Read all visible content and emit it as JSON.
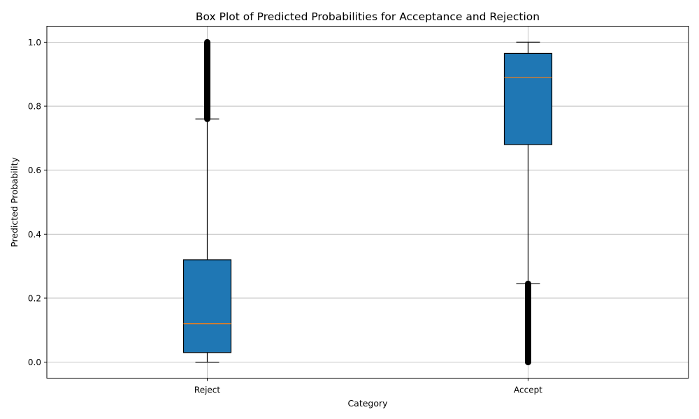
{
  "chart_data": {
    "type": "box",
    "title": "Box Plot of Predicted Probabilities for Acceptance and Rejection",
    "xlabel": "Category",
    "ylabel": "Predicted Probability",
    "ylim": [
      -0.05,
      1.05
    ],
    "yticks": [
      0.0,
      0.2,
      0.4,
      0.6,
      0.8,
      1.0
    ],
    "ytick_labels": [
      "0.0",
      "0.2",
      "0.4",
      "0.6",
      "0.8",
      "1.0"
    ],
    "grid": true,
    "colors": {
      "box_fill": "#1f77b4",
      "median": "#ff7f0e",
      "grid": "#b0b0b0",
      "outlier": "#000000"
    },
    "categories": [
      "Reject",
      "Accept"
    ],
    "boxes": [
      {
        "category": "Reject",
        "whisker_low": 0.0,
        "q1": 0.03,
        "median": 0.12,
        "q3": 0.32,
        "whisker_high": 0.76,
        "outlier_range": [
          0.76,
          1.0
        ]
      },
      {
        "category": "Accept",
        "whisker_low": 0.245,
        "q1": 0.68,
        "median": 0.89,
        "q3": 0.965,
        "whisker_high": 1.0,
        "outlier_range": [
          0.0,
          0.245
        ]
      }
    ]
  }
}
